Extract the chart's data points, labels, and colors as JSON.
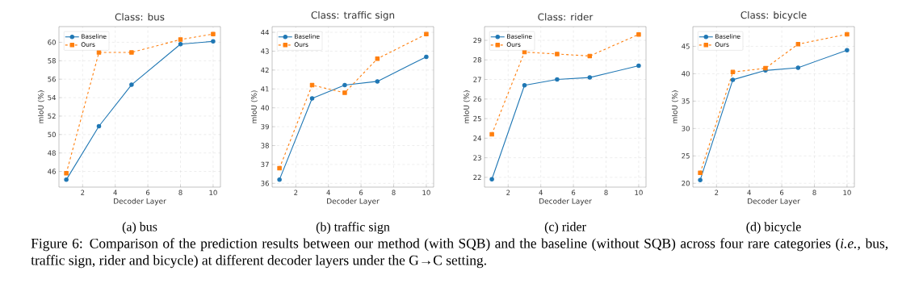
{
  "chart_data": [
    {
      "type": "line",
      "title": "Class: bus",
      "xlabel": "Decoder Layer",
      "ylabel": "mIoU (%)",
      "x": [
        1,
        3,
        5,
        8,
        10
      ],
      "series": [
        {
          "name": "Baseline",
          "color": "#1f77b4",
          "marker": "circle",
          "line_style": "solid",
          "values": [
            45.1,
            50.9,
            55.4,
            59.8,
            60.1
          ]
        },
        {
          "name": "Ours",
          "color": "#ff7f0e",
          "marker": "square",
          "line_style": "dashed",
          "values": [
            45.8,
            58.9,
            58.9,
            60.3,
            60.9
          ]
        }
      ],
      "xlim": [
        0.55,
        10.45
      ],
      "xticks": [
        2,
        4,
        6,
        8,
        10
      ],
      "ylim": [
        44.3,
        61.7
      ],
      "yticks": [
        46,
        48,
        50,
        52,
        54,
        56,
        58,
        60
      ],
      "grid": true,
      "legend": "top left",
      "annotations": [
        "(a) bus"
      ]
    },
    {
      "type": "line",
      "title": "Class: traffic sign",
      "xlabel": "Decoder Layer",
      "ylabel": "mIoU (%)",
      "x": [
        1,
        3,
        5,
        7,
        10
      ],
      "series": [
        {
          "name": "Baseline",
          "color": "#1f77b4",
          "marker": "circle",
          "line_style": "solid",
          "values": [
            36.2,
            40.5,
            41.2,
            41.4,
            42.7
          ]
        },
        {
          "name": "Ours",
          "color": "#ff7f0e",
          "marker": "square",
          "line_style": "dashed",
          "values": [
            36.8,
            41.2,
            40.8,
            42.6,
            43.9
          ]
        }
      ],
      "xlim": [
        0.55,
        10.45
      ],
      "xticks": [
        2,
        4,
        6,
        8,
        10
      ],
      "ylim": [
        35.8,
        44.3
      ],
      "yticks": [
        36,
        37,
        38,
        39,
        40,
        41,
        42,
        43,
        44
      ],
      "grid": true,
      "legend": "top left",
      "annotations": [
        "(b) traffic sign"
      ]
    },
    {
      "type": "line",
      "title": "Class: rider",
      "xlabel": "Decoder Layer",
      "ylabel": "mIoU (%)",
      "x": [
        1,
        3,
        5,
        7,
        10
      ],
      "series": [
        {
          "name": "Baseline",
          "color": "#1f77b4",
          "marker": "circle",
          "line_style": "solid",
          "values": [
            21.9,
            26.7,
            27.0,
            27.1,
            27.7
          ]
        },
        {
          "name": "Ours",
          "color": "#ff7f0e",
          "marker": "square",
          "line_style": "dashed",
          "values": [
            24.2,
            28.4,
            28.3,
            28.2,
            29.3
          ]
        }
      ],
      "xlim": [
        0.55,
        10.45
      ],
      "xticks": [
        2,
        4,
        6,
        8,
        10
      ],
      "ylim": [
        21.5,
        29.7
      ],
      "yticks": [
        22,
        23,
        24,
        25,
        26,
        27,
        28,
        29
      ],
      "grid": true,
      "legend": "top left",
      "annotations": [
        "(c) rider"
      ]
    },
    {
      "type": "line",
      "title": "Class: bicycle",
      "xlabel": "Decoder Layer",
      "ylabel": "mIoU (%)",
      "x": [
        1,
        3,
        5,
        7,
        10
      ],
      "series": [
        {
          "name": "Baseline",
          "color": "#1f77b4",
          "marker": "circle",
          "line_style": "solid",
          "values": [
            20.6,
            38.9,
            40.6,
            41.1,
            44.3
          ]
        },
        {
          "name": "Ours",
          "color": "#ff7f0e",
          "marker": "square",
          "line_style": "dashed",
          "values": [
            21.9,
            40.3,
            41.0,
            45.4,
            47.2
          ]
        }
      ],
      "xlim": [
        0.55,
        10.45
      ],
      "xticks": [
        2,
        4,
        6,
        8,
        10
      ],
      "ylim": [
        19.3,
        48.6
      ],
      "yticks": [
        20,
        25,
        30,
        35,
        40,
        45
      ],
      "grid": true,
      "legend": "top left",
      "annotations": [
        "(d) bicycle",
        "Figure 6: Comparison of the prediction results between our method (with SQB) and the baseline (without SQB) across four rare categories (*i.e.*, bus, traffic sign, rider and bicycle) at different decoder layers under the G→C setting."
      ]
    }
  ]
}
